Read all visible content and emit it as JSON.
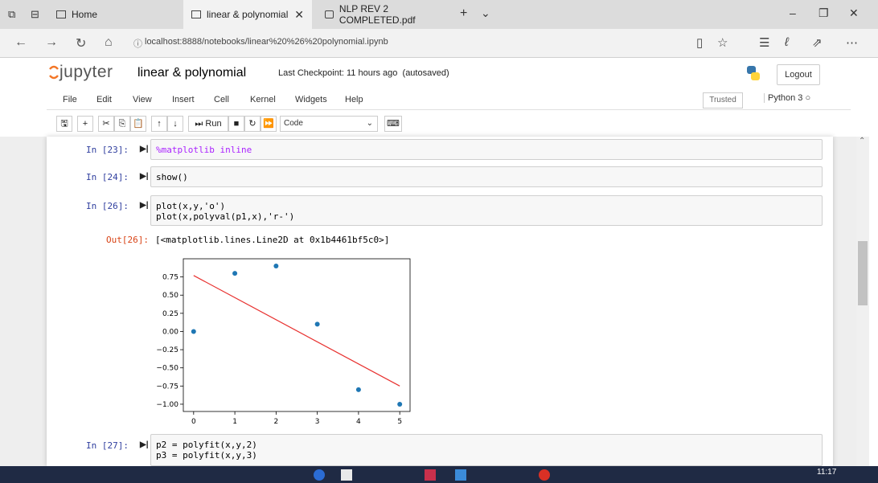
{
  "browser": {
    "tabs": [
      {
        "label": "Home",
        "icon": "page-icon"
      },
      {
        "label": "linear & polynomial",
        "icon": "page-icon",
        "active": true
      },
      {
        "label": "NLP REV 2 COMPLETED.pdf",
        "icon": "pdf-icon"
      }
    ],
    "new_tab": "+",
    "tab_menu": "⌄",
    "url": "localhost:8888/notebooks/linear%20%26%20polynomial.ipynb",
    "window_controls": [
      "–",
      "❐",
      "✕"
    ]
  },
  "jupyter": {
    "logo_text": "jupyter",
    "notebook_title": "linear & polynomial",
    "checkpoint": "Last Checkpoint: 11 hours ago",
    "autosave": "(autosaved)",
    "logout": "Logout",
    "menus": [
      "File",
      "Edit",
      "View",
      "Insert",
      "Cell",
      "Kernel",
      "Widgets",
      "Help"
    ],
    "trusted": "Trusted",
    "kernel": "Python 3",
    "toolbar": {
      "run": "Run",
      "cell_type": "Code"
    }
  },
  "cells": [
    {
      "prompt": "In [23]:",
      "code": [
        "%matplotlib inline"
      ]
    },
    {
      "prompt": "In [24]:",
      "code": [
        "show()"
      ]
    },
    {
      "prompt": "In [26]:",
      "code": [
        "plot(x,y,'o')",
        "plot(x,polyval(p1,x),'r-')"
      ]
    },
    {
      "prompt": "In [27]:",
      "code": [
        "p2 = polyfit(x,y,2)",
        "p3 = polyfit(x,y,3)"
      ]
    }
  ],
  "output": {
    "prompt": "Out[26]:",
    "text": "[<matplotlib.lines.Line2D at 0x1b4461bf5c0>]"
  },
  "chart_data": {
    "type": "scatter",
    "x": [
      0,
      1,
      2,
      3,
      4,
      5
    ],
    "y": [
      0.0,
      0.8,
      0.9,
      0.1,
      -0.8,
      -1.0
    ],
    "fit_line": {
      "x": [
        0,
        5
      ],
      "y": [
        0.77,
        -0.75
      ],
      "color": "#e8312f"
    },
    "point_color": "#1f77b4",
    "xticks": [
      "0",
      "1",
      "2",
      "3",
      "4",
      "5"
    ],
    "yticks": [
      "0.75",
      "0.50",
      "0.25",
      "0.00",
      "−0.25",
      "−0.50",
      "−0.75",
      "−1.00"
    ],
    "xlim": [
      -0.25,
      5.25
    ],
    "ylim": [
      -1.1,
      1.0
    ],
    "grid": false
  },
  "taskbar": {
    "clock": "11:17"
  }
}
